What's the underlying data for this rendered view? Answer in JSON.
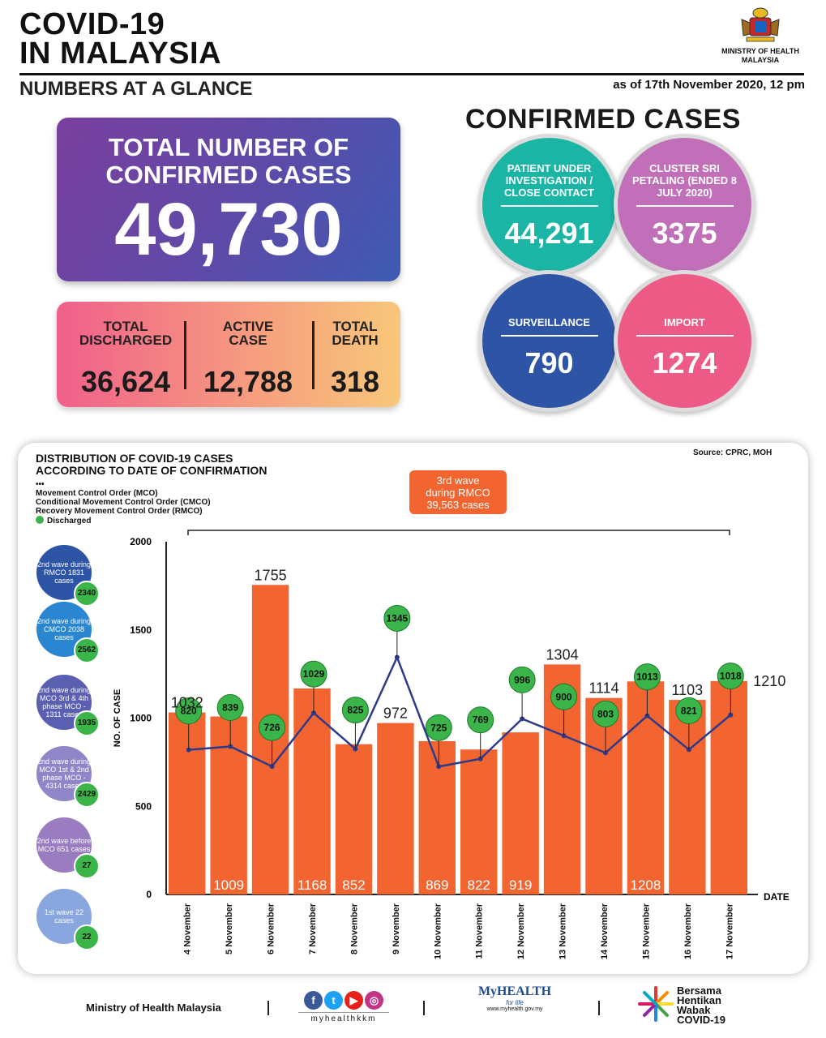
{
  "header": {
    "title_line1": "COVID-19",
    "title_line2": "IN MALAYSIA",
    "subtitle": "NUMBERS AT A GLANCE",
    "as_of": "as of 17th November 2020, 12 pm",
    "ministry_line1": "MINISTRY OF HEALTH",
    "ministry_line2": "MALAYSIA"
  },
  "total": {
    "label_line1": "TOTAL NUMBER OF",
    "label_line2": "CONFIRMED CASES",
    "value": "49,730"
  },
  "stats": {
    "discharged_l1": "TOTAL",
    "discharged_l2": "DISCHARGED",
    "discharged_v": "36,624",
    "active_l1": "ACTIVE",
    "active_l2": "CASE",
    "active_v": "12,788",
    "death_l1": "TOTAL",
    "death_l2": "DEATH",
    "death_v": "318"
  },
  "confirmed": {
    "title": "CONFIRMED CASES",
    "pui_label": "PATIENT UNDER INVESTIGATION / CLOSE CONTACT",
    "pui_value": "44,291",
    "cluster_label": "CLUSTER SRI PETALING (ENDED 8 JULY 2020)",
    "cluster_value": "3375",
    "surv_label": "SURVEILLANCE",
    "surv_value": "790",
    "import_label": "IMPORT",
    "import_value": "1274",
    "colors": {
      "pui": "#1bb5a6",
      "cluster": "#c06fb8",
      "surv": "#2d54a5",
      "import": "#ee5a86"
    }
  },
  "chart_card": {
    "title_line1": "DISTRIBUTION OF COVID-19 CASES",
    "title_line2": "ACCORDING TO DATE OF CONFIRMATION",
    "source": "Source: CPRC, MOH",
    "legend_dots": "•••",
    "legend_mco": "Movement Control Order (MCO)",
    "legend_cmco": "Conditional Movement Control Order (CMCO)",
    "legend_rmco": "Recovery Movement Control Order (RMCO)",
    "legend_discharged": "Discharged",
    "wave_badge_l1": "3rd wave",
    "wave_badge_l2": "during RMCO",
    "wave_badge_l3": "39,563 cases"
  },
  "waves": [
    {
      "text": "2nd wave during RMCO 1831 cases",
      "discharged": "2340",
      "color": "#2d54a5"
    },
    {
      "text": "2nd wave during CMCO 2038 cases",
      "discharged": "2562",
      "color": "#2a86d1"
    },
    {
      "text": "2nd wave during MCO 3rd & 4th phase MCO - 1311 cases",
      "discharged": "1935",
      "color": "#5a5fb0"
    },
    {
      "text": "2nd wave during MCO 1st & 2nd phase MCO - 4314 cases",
      "discharged": "2429",
      "color": "#8f86c8"
    },
    {
      "text": "2nd wave before MCO 651 cases",
      "discharged": "27",
      "color": "#9a7cc0"
    },
    {
      "text": "1st wave 22 cases",
      "discharged": "22",
      "color": "#8aa6de"
    }
  ],
  "chart_data": {
    "type": "bar",
    "categories": [
      "4 November",
      "5 November",
      "6 November",
      "7 November",
      "8 November",
      "9 November",
      "10 November",
      "11 November",
      "12 November",
      "13 November",
      "14 November",
      "15 November",
      "16 November",
      "17 November"
    ],
    "series": [
      {
        "values": [
          1032,
          1009,
          1755,
          1168,
          852,
          972,
          869,
          822,
          919,
          1304,
          1114,
          1208,
          1103,
          1210
        ],
        "color": "#f26531"
      },
      {
        "name": "Discharged",
        "values": [
          820,
          839,
          726,
          1029,
          825,
          1345,
          725,
          769,
          996,
          900,
          803,
          1013,
          821,
          1018
        ],
        "color": "#2d3a8c"
      }
    ],
    "xlabel": "DATE",
    "ylabel": "NO. OF CASE",
    "ylim": [
      0,
      2000
    ],
    "yticks": [
      0,
      500,
      1000,
      1500,
      2000
    ]
  },
  "footer": {
    "ministry": "Ministry of Health Malaysia",
    "handle": "myhealthkkm",
    "myhealth": "MyHEALTH",
    "myhealth_tag": "for life",
    "myhealth_url": "www.myhealth.gov.my",
    "bersama_l1": "Bersama",
    "bersama_l2": "Hentikan",
    "bersama_l3": "Wabak",
    "bersama_l4": "COVID-19"
  }
}
